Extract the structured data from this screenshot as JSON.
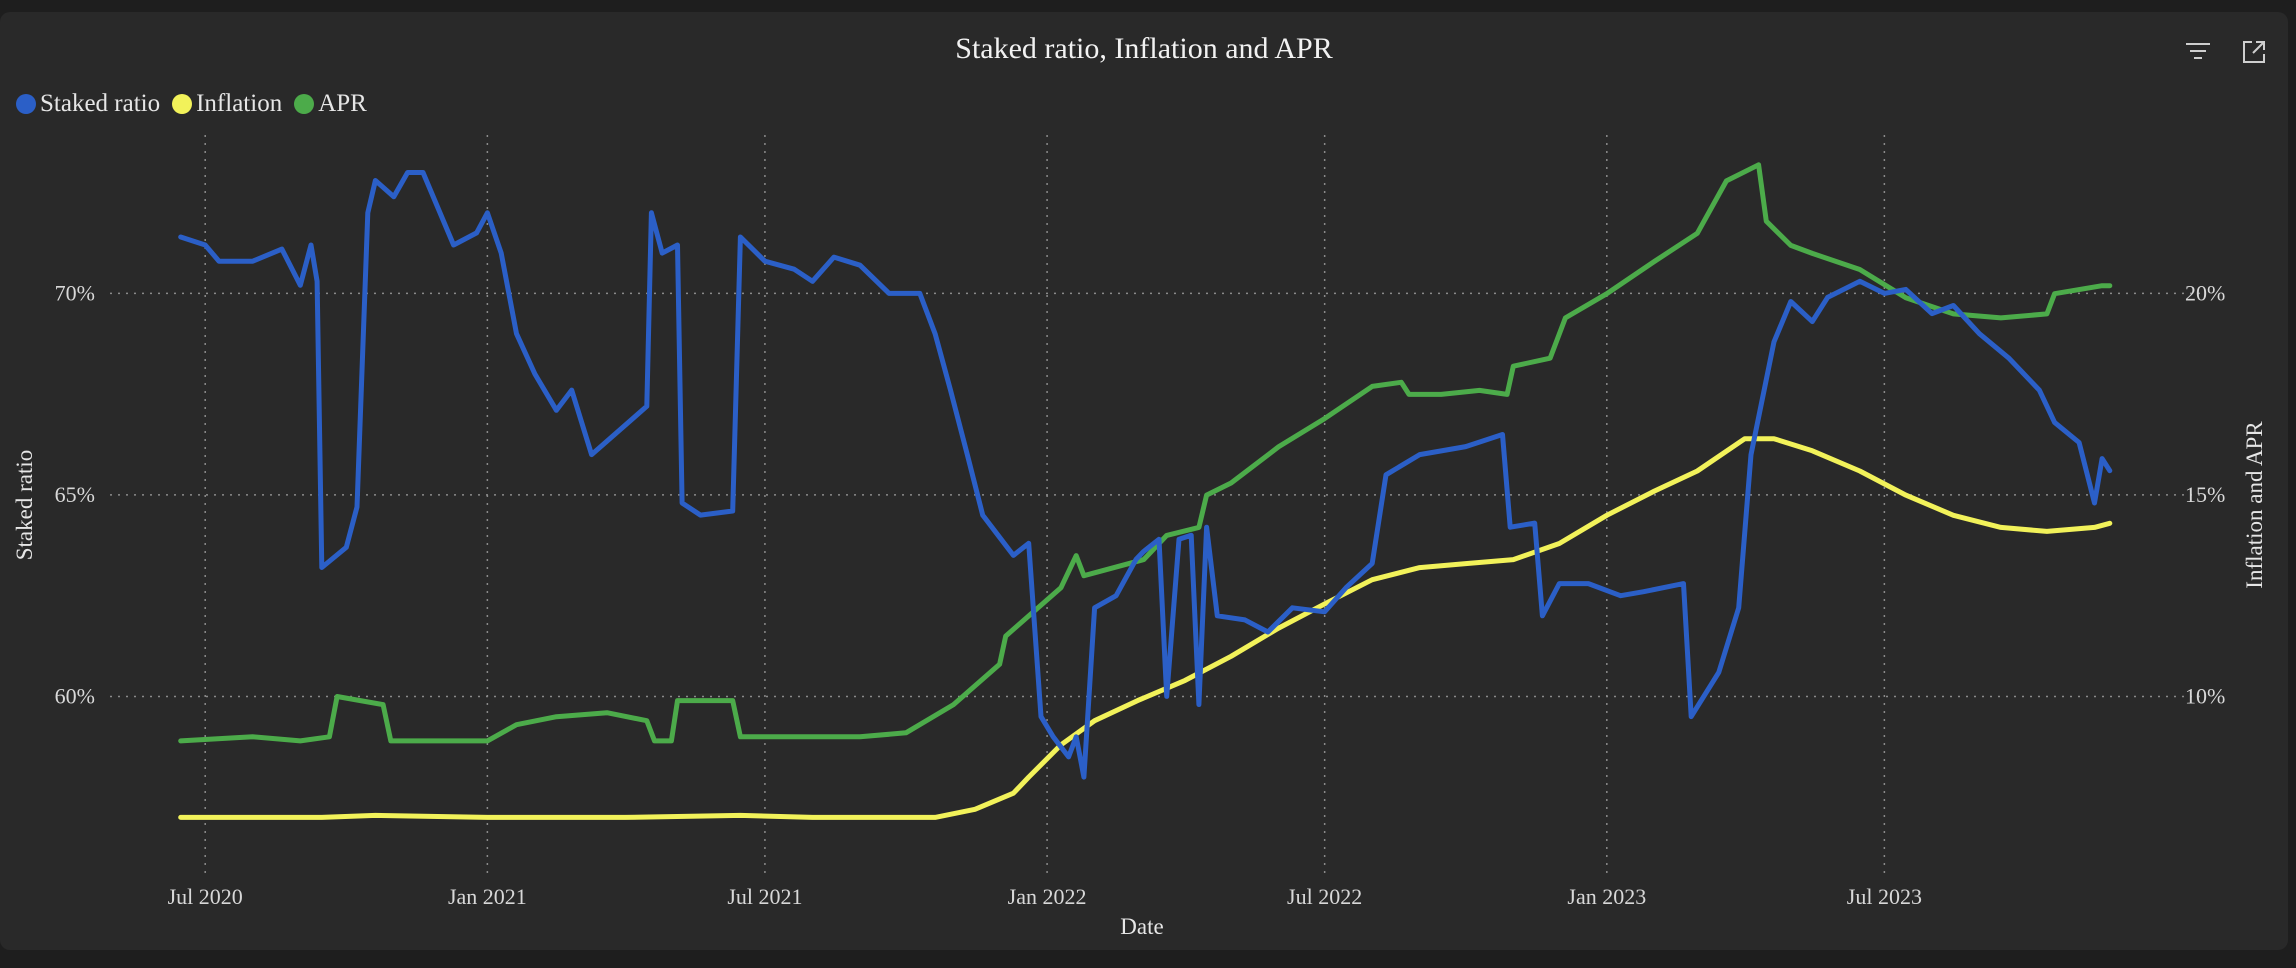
{
  "chart_data": {
    "type": "line",
    "title": "Staked ratio, Inflation and APR",
    "xlabel": "Date",
    "ylabel_left": "Staked ratio",
    "ylabel_right": "Inflation and APR",
    "x_ticks": [
      "Jul 2020",
      "Jan 2021",
      "Jul 2021",
      "Jan 2022",
      "Jul 2022",
      "Jan 2023",
      "Jul 2023"
    ],
    "y_left_ticks": [
      "60%",
      "65%",
      "70%"
    ],
    "y_right_ticks": [
      "10%",
      "15%",
      "20%"
    ],
    "y_left_range": [
      0.5557,
      0.7393
    ],
    "y_right_range": [
      0.0557,
      0.2394
    ],
    "x_range": [
      "2020-05-26",
      "2023-12-31"
    ],
    "grid": true,
    "legend_position": "top-left",
    "series": [
      {
        "name": "Staked ratio",
        "axis": "left",
        "color": "#2b5fc7",
        "points": [
          [
            "2020-06-15",
            0.714
          ],
          [
            "2020-07-01",
            0.712
          ],
          [
            "2020-07-10",
            0.708
          ],
          [
            "2020-08-01",
            0.708
          ],
          [
            "2020-08-20",
            0.711
          ],
          [
            "2020-09-01",
            0.702
          ],
          [
            "2020-09-08",
            0.712
          ],
          [
            "2020-09-12",
            0.703
          ],
          [
            "2020-09-15",
            0.632
          ],
          [
            "2020-10-01",
            0.637
          ],
          [
            "2020-10-08",
            0.647
          ],
          [
            "2020-10-15",
            0.72
          ],
          [
            "2020-10-20",
            0.728
          ],
          [
            "2020-11-01",
            0.724
          ],
          [
            "2020-11-10",
            0.73
          ],
          [
            "2020-11-20",
            0.73
          ],
          [
            "2020-12-10",
            0.712
          ],
          [
            "2020-12-25",
            0.715
          ],
          [
            "2021-01-01",
            0.72
          ],
          [
            "2021-01-10",
            0.71
          ],
          [
            "2021-01-20",
            0.69
          ],
          [
            "2021-02-01",
            0.68
          ],
          [
            "2021-02-15",
            0.671
          ],
          [
            "2021-02-25",
            0.676
          ],
          [
            "2021-03-10",
            0.66
          ],
          [
            "2021-04-15",
            0.672
          ],
          [
            "2021-04-18",
            0.72
          ],
          [
            "2021-04-25",
            0.71
          ],
          [
            "2021-05-05",
            0.712
          ],
          [
            "2021-05-08",
            0.648
          ],
          [
            "2021-05-20",
            0.645
          ],
          [
            "2021-06-10",
            0.646
          ],
          [
            "2021-06-15",
            0.714
          ],
          [
            "2021-07-01",
            0.708
          ],
          [
            "2021-07-20",
            0.706
          ],
          [
            "2021-08-01",
            0.703
          ],
          [
            "2021-08-15",
            0.709
          ],
          [
            "2021-09-01",
            0.707
          ],
          [
            "2021-09-20",
            0.7
          ],
          [
            "2021-10-10",
            0.7
          ],
          [
            "2021-10-20",
            0.69
          ],
          [
            "2021-10-30",
            0.676
          ],
          [
            "2021-11-10",
            0.66
          ],
          [
            "2021-11-20",
            0.645
          ],
          [
            "2021-11-30",
            0.64
          ],
          [
            "2021-12-10",
            0.635
          ],
          [
            "2021-12-20",
            0.638
          ],
          [
            "2021-12-28",
            0.595
          ],
          [
            "2022-01-05",
            0.59
          ],
          [
            "2022-01-15",
            0.585
          ],
          [
            "2022-01-20",
            0.59
          ],
          [
            "2022-01-25",
            0.58
          ],
          [
            "2022-02-01",
            0.622
          ],
          [
            "2022-02-15",
            0.625
          ],
          [
            "2022-02-28",
            0.634
          ],
          [
            "2022-03-05",
            0.636
          ],
          [
            "2022-03-15",
            0.639
          ],
          [
            "2022-03-20",
            0.6
          ],
          [
            "2022-03-28",
            0.639
          ],
          [
            "2022-04-05",
            0.64
          ],
          [
            "2022-04-10",
            0.598
          ],
          [
            "2022-04-15",
            0.642
          ],
          [
            "2022-04-22",
            0.62
          ],
          [
            "2022-05-10",
            0.619
          ],
          [
            "2022-05-25",
            0.616
          ],
          [
            "2022-06-10",
            0.622
          ],
          [
            "2022-07-01",
            0.621
          ],
          [
            "2022-07-15",
            0.627
          ],
          [
            "2022-08-01",
            0.633
          ],
          [
            "2022-08-10",
            0.655
          ],
          [
            "2022-09-01",
            0.66
          ],
          [
            "2022-10-01",
            0.662
          ],
          [
            "2022-10-25",
            0.665
          ],
          [
            "2022-10-30",
            0.642
          ],
          [
            "2022-11-15",
            0.643
          ],
          [
            "2022-11-20",
            0.62
          ],
          [
            "2022-12-01",
            0.628
          ],
          [
            "2022-12-20",
            0.628
          ],
          [
            "2023-01-10",
            0.625
          ],
          [
            "2023-01-25",
            0.626
          ],
          [
            "2023-02-20",
            0.628
          ],
          [
            "2023-02-25",
            0.595
          ],
          [
            "2023-03-15",
            0.606
          ],
          [
            "2023-03-28",
            0.622
          ],
          [
            "2023-04-05",
            0.66
          ],
          [
            "2023-04-20",
            0.688
          ],
          [
            "2023-05-01",
            0.698
          ],
          [
            "2023-05-15",
            0.693
          ],
          [
            "2023-05-25",
            0.699
          ],
          [
            "2023-06-15",
            0.703
          ],
          [
            "2023-07-01",
            0.7
          ],
          [
            "2023-07-15",
            0.701
          ],
          [
            "2023-08-01",
            0.695
          ],
          [
            "2023-08-15",
            0.697
          ],
          [
            "2023-09-01",
            0.69
          ],
          [
            "2023-09-20",
            0.684
          ],
          [
            "2023-10-10",
            0.676
          ],
          [
            "2023-10-20",
            0.668
          ],
          [
            "2023-11-05",
            0.663
          ],
          [
            "2023-11-15",
            0.648
          ],
          [
            "2023-11-20",
            0.659
          ],
          [
            "2023-11-25",
            0.656
          ]
        ]
      },
      {
        "name": "Inflation",
        "axis": "right",
        "color": "#f2f25a",
        "points": [
          [
            "2020-06-15",
            0.07
          ],
          [
            "2020-09-15",
            0.07
          ],
          [
            "2020-10-20",
            0.0705
          ],
          [
            "2021-01-01",
            0.07
          ],
          [
            "2021-04-01",
            0.07
          ],
          [
            "2021-06-15",
            0.0705
          ],
          [
            "2021-08-01",
            0.07
          ],
          [
            "2021-10-20",
            0.07
          ],
          [
            "2021-11-15",
            0.072
          ],
          [
            "2021-12-10",
            0.076
          ],
          [
            "2021-12-20",
            0.08
          ],
          [
            "2022-01-10",
            0.088
          ],
          [
            "2022-02-01",
            0.094
          ],
          [
            "2022-03-01",
            0.099
          ],
          [
            "2022-04-01",
            0.104
          ],
          [
            "2022-05-01",
            0.11
          ],
          [
            "2022-06-01",
            0.117
          ],
          [
            "2022-07-01",
            0.123
          ],
          [
            "2022-08-01",
            0.129
          ],
          [
            "2022-09-01",
            0.132
          ],
          [
            "2022-10-01",
            0.133
          ],
          [
            "2022-11-01",
            0.134
          ],
          [
            "2022-12-01",
            0.138
          ],
          [
            "2023-01-01",
            0.145
          ],
          [
            "2023-02-01",
            0.151
          ],
          [
            "2023-03-01",
            0.156
          ],
          [
            "2023-04-01",
            0.164
          ],
          [
            "2023-04-20",
            0.164
          ],
          [
            "2023-05-15",
            0.161
          ],
          [
            "2023-06-15",
            0.156
          ],
          [
            "2023-07-15",
            0.15
          ],
          [
            "2023-08-15",
            0.145
          ],
          [
            "2023-09-15",
            0.142
          ],
          [
            "2023-10-15",
            0.141
          ],
          [
            "2023-11-15",
            0.142
          ],
          [
            "2023-11-25",
            0.143
          ]
        ]
      },
      {
        "name": "APR",
        "axis": "right",
        "color": "#4cab4a",
        "points": [
          [
            "2020-06-15",
            0.089
          ],
          [
            "2020-08-01",
            0.09
          ],
          [
            "2020-09-01",
            0.089
          ],
          [
            "2020-09-20",
            0.09
          ],
          [
            "2020-09-25",
            0.1
          ],
          [
            "2020-10-25",
            0.098
          ],
          [
            "2020-10-30",
            0.089
          ],
          [
            "2020-12-01",
            0.089
          ],
          [
            "2021-01-01",
            0.089
          ],
          [
            "2021-01-20",
            0.093
          ],
          [
            "2021-02-15",
            0.095
          ],
          [
            "2021-03-20",
            0.096
          ],
          [
            "2021-04-15",
            0.094
          ],
          [
            "2021-04-20",
            0.089
          ],
          [
            "2021-05-01",
            0.089
          ],
          [
            "2021-05-05",
            0.099
          ],
          [
            "2021-06-10",
            0.099
          ],
          [
            "2021-06-15",
            0.09
          ],
          [
            "2021-07-15",
            0.09
          ],
          [
            "2021-09-01",
            0.09
          ],
          [
            "2021-10-01",
            0.091
          ],
          [
            "2021-11-01",
            0.098
          ],
          [
            "2021-12-01",
            0.108
          ],
          [
            "2021-12-05",
            0.115
          ],
          [
            "2022-01-10",
            0.127
          ],
          [
            "2022-01-20",
            0.135
          ],
          [
            "2022-01-25",
            0.13
          ],
          [
            "2022-03-05",
            0.134
          ],
          [
            "2022-03-20",
            0.14
          ],
          [
            "2022-04-10",
            0.142
          ],
          [
            "2022-04-15",
            0.15
          ],
          [
            "2022-05-01",
            0.153
          ],
          [
            "2022-06-01",
            0.162
          ],
          [
            "2022-07-01",
            0.169
          ],
          [
            "2022-08-01",
            0.177
          ],
          [
            "2022-08-20",
            0.178
          ],
          [
            "2022-08-25",
            0.175
          ],
          [
            "2022-09-15",
            0.175
          ],
          [
            "2022-10-10",
            0.176
          ],
          [
            "2022-10-28",
            0.175
          ],
          [
            "2022-11-01",
            0.182
          ],
          [
            "2022-11-25",
            0.184
          ],
          [
            "2022-12-05",
            0.194
          ],
          [
            "2023-01-01",
            0.2
          ],
          [
            "2023-02-01",
            0.208
          ],
          [
            "2023-03-01",
            0.215
          ],
          [
            "2023-03-20",
            0.228
          ],
          [
            "2023-04-10",
            0.232
          ],
          [
            "2023-04-15",
            0.218
          ],
          [
            "2023-05-01",
            0.212
          ],
          [
            "2023-05-15",
            0.21
          ],
          [
            "2023-06-15",
            0.206
          ],
          [
            "2023-07-15",
            0.199
          ],
          [
            "2023-08-15",
            0.195
          ],
          [
            "2023-09-15",
            0.194
          ],
          [
            "2023-10-15",
            0.195
          ],
          [
            "2023-10-20",
            0.2
          ],
          [
            "2023-11-20",
            0.202
          ],
          [
            "2023-11-25",
            0.202
          ]
        ]
      }
    ]
  }
}
